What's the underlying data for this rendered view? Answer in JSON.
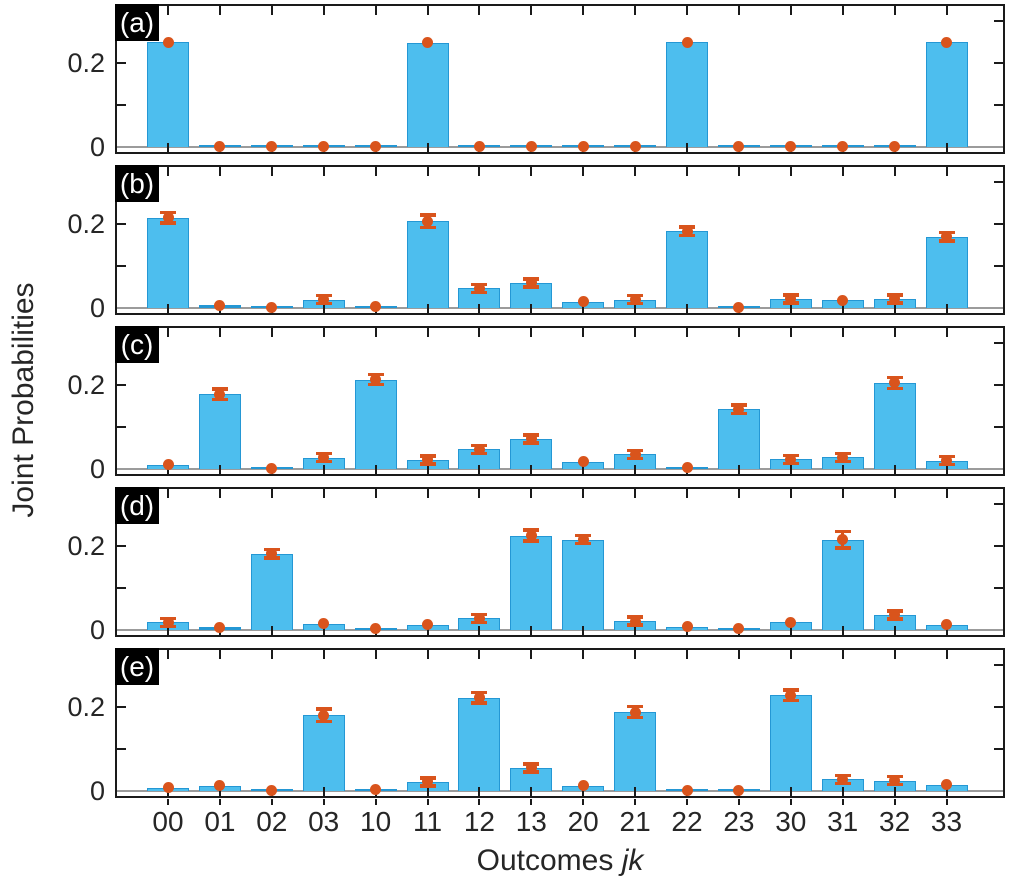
{
  "figure": {
    "xlabel_text": "Outcomes ",
    "xlabel_italic": "jk",
    "ylabel": "Joint Probabilities",
    "ytick_label_02": "0.2",
    "ytick_label_0": "0",
    "colors": {
      "bar_fill": "#4DBEEE",
      "bar_edge": "#2497D4",
      "error": "#D9541C",
      "axis": "#1A1A1A",
      "baseline": "#9B9B9B",
      "panel_label_bg": "#000000",
      "panel_label_fg": "#FFFFFF",
      "text": "#262626"
    }
  },
  "chart_data": {
    "type": "bar",
    "title": "",
    "xlabel": "Outcomes jk",
    "ylabel": "Joint Probabilities",
    "categories": [
      "00",
      "01",
      "02",
      "03",
      "10",
      "11",
      "12",
      "13",
      "20",
      "21",
      "22",
      "23",
      "30",
      "31",
      "32",
      "33"
    ],
    "ylim": [
      -0.012,
      0.345
    ],
    "yticks": [
      0,
      0.1,
      0.2,
      0.3
    ],
    "ytick_labels_shown": {
      "0": "0",
      "0.2": "0.2"
    },
    "grid": false,
    "legend": null,
    "error_bar_color": "#D9541C",
    "bar_color": "#4DBEEE",
    "panels": [
      {
        "label": "(a)",
        "values": [
          0.25,
          0.001,
          0.001,
          0.001,
          0.001,
          0.248,
          0.001,
          0.001,
          0.001,
          0.001,
          0.25,
          0.001,
          0.001,
          0.001,
          0.001,
          0.25
        ],
        "errors": [
          0.004,
          0.002,
          0.002,
          0.002,
          0.002,
          0.004,
          0.002,
          0.002,
          0.002,
          0.002,
          0.004,
          0.002,
          0.002,
          0.002,
          0.002,
          0.004
        ]
      },
      {
        "label": "(b)",
        "values": [
          0.215,
          0.007,
          0.002,
          0.02,
          0.003,
          0.207,
          0.047,
          0.06,
          0.015,
          0.02,
          0.183,
          0.002,
          0.022,
          0.018,
          0.022,
          0.17
        ],
        "errors": [
          0.013,
          0.004,
          0.003,
          0.006,
          0.003,
          0.015,
          0.008,
          0.007,
          0.005,
          0.006,
          0.01,
          0.003,
          0.006,
          0.005,
          0.007,
          0.01
        ]
      },
      {
        "label": "(c)",
        "values": [
          0.01,
          0.178,
          0.002,
          0.027,
          0.213,
          0.022,
          0.047,
          0.072,
          0.017,
          0.035,
          0.003,
          0.142,
          0.023,
          0.028,
          0.205,
          0.02
        ],
        "errors": [
          0.004,
          0.012,
          0.003,
          0.006,
          0.012,
          0.006,
          0.008,
          0.008,
          0.005,
          0.007,
          0.003,
          0.01,
          0.006,
          0.006,
          0.013,
          0.006
        ]
      },
      {
        "label": "(d)",
        "values": [
          0.018,
          0.007,
          0.182,
          0.015,
          0.004,
          0.012,
          0.028,
          0.225,
          0.215,
          0.021,
          0.008,
          0.003,
          0.018,
          0.215,
          0.036,
          0.013
        ],
        "errors": [
          0.006,
          0.004,
          0.01,
          0.005,
          0.003,
          0.005,
          0.006,
          0.013,
          0.009,
          0.006,
          0.004,
          0.003,
          0.005,
          0.02,
          0.007,
          0.005
        ]
      },
      {
        "label": "(e)",
        "values": [
          0.008,
          0.012,
          0.002,
          0.18,
          0.004,
          0.022,
          0.222,
          0.055,
          0.012,
          0.188,
          0.002,
          0.002,
          0.228,
          0.028,
          0.025,
          0.015
        ],
        "errors": [
          0.004,
          0.005,
          0.003,
          0.015,
          0.003,
          0.007,
          0.012,
          0.007,
          0.005,
          0.013,
          0.003,
          0.003,
          0.013,
          0.006,
          0.006,
          0.005
        ]
      }
    ]
  }
}
